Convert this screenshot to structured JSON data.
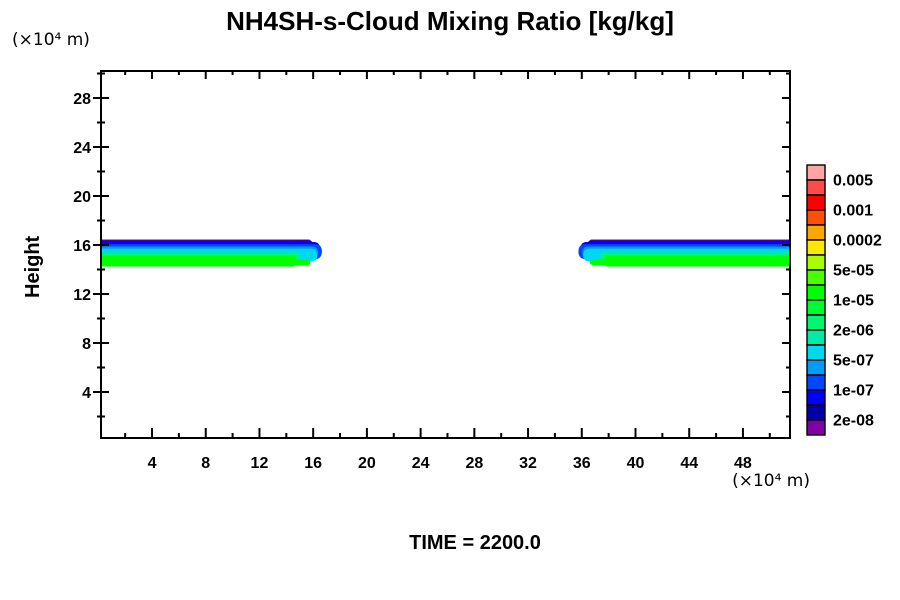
{
  "title": "NH4SH-s-Cloud Mixing Ratio [kg/kg]",
  "y_axis_unit": "(×10⁴  m)",
  "x_axis_unit": "(×10⁴  m)",
  "y_axis_label": "Height",
  "time_label": "TIME = 2200.0",
  "chart_data": {
    "type": "heatmap",
    "subtype": "filled-contour",
    "title": "NH4SH-s-Cloud Mixing Ratio [kg/kg]",
    "xlabel": "(×10⁴  m)",
    "ylabel": "Height (×10⁴  m)",
    "xlim": [
      0.2,
      51.5
    ],
    "ylim": [
      0.2,
      30.2
    ],
    "x_major_ticks": [
      4,
      8,
      12,
      16,
      20,
      24,
      28,
      32,
      36,
      40,
      44,
      48
    ],
    "x_minor_step": 2,
    "y_major_ticks": [
      4,
      8,
      12,
      16,
      20,
      24,
      28
    ],
    "y_minor_step": 2,
    "time_value": 2200.0,
    "colorbar": {
      "position": "right",
      "colors_top_to_bottom": [
        "#ffa5a5",
        "#ff4b4b",
        "#ff0000",
        "#ff5000",
        "#ffa500",
        "#ffe800",
        "#a5ff00",
        "#4bff00",
        "#00ff00",
        "#00fb32",
        "#00f573",
        "#00ebaa",
        "#00d8f0",
        "#009cfb",
        "#0048fb",
        "#0000fb",
        "#0000a5",
        "#8000a5"
      ],
      "labels_top_to_bottom": [
        "0.005",
        "0.001",
        "0.0002",
        "5e-05",
        "1e-05",
        "2e-06",
        "5e-07",
        "1e-07",
        "2e-08"
      ],
      "label_every_n_cells": 2
    },
    "mirror_ref": 52.4,
    "bands": [
      {
        "side": "left",
        "desc": "cloud layer from left axis to x≈16.6, heights ≈14.2–16.4"
      },
      {
        "side": "right",
        "desc": "cloud layer from x≈35.7 to right axis, heights ≈14.2–16.4"
      }
    ],
    "stripes": [
      {
        "color": "#8000a5",
        "h_top": 16.45,
        "h_bot": 15.3,
        "tip": 15.9,
        "r": 3
      },
      {
        "color": "#0000a5",
        "h_top": 16.37,
        "h_bot": 15.2,
        "tip": 16.05,
        "r": 5
      },
      {
        "color": "#0000fb",
        "h_top": 16.25,
        "h_bot": 15.1,
        "tip": 16.5,
        "r": 6
      },
      {
        "color": "#0048fb",
        "h_top": 16.07,
        "h_bot": 14.85,
        "tip": 16.65,
        "r": 7
      },
      {
        "color": "#009cfb",
        "h_top": 15.88,
        "h_bot": 14.9,
        "tip": 16.35,
        "r": 6
      },
      {
        "color": "#00d8f0",
        "h_top": 15.7,
        "h_bot": 14.65,
        "tip": 16.3,
        "r": 7
      },
      {
        "color": "#00ebaa",
        "h_top": 15.42,
        "h_bot": 14.5,
        "tip": 15.05,
        "r": 4
      },
      {
        "color": "#00f573",
        "h_top": 15.28,
        "h_bot": 14.4,
        "tip": 14.9,
        "r": 4
      },
      {
        "color": "#00ff00",
        "h_top": 15.12,
        "h_bot": 14.24,
        "tip": 14.75,
        "r": 3
      }
    ],
    "bump": {
      "color": "#00ff00",
      "h_top": 14.85,
      "h_bot": 14.35,
      "x_from": 14.3,
      "x_to": 15.8
    }
  }
}
